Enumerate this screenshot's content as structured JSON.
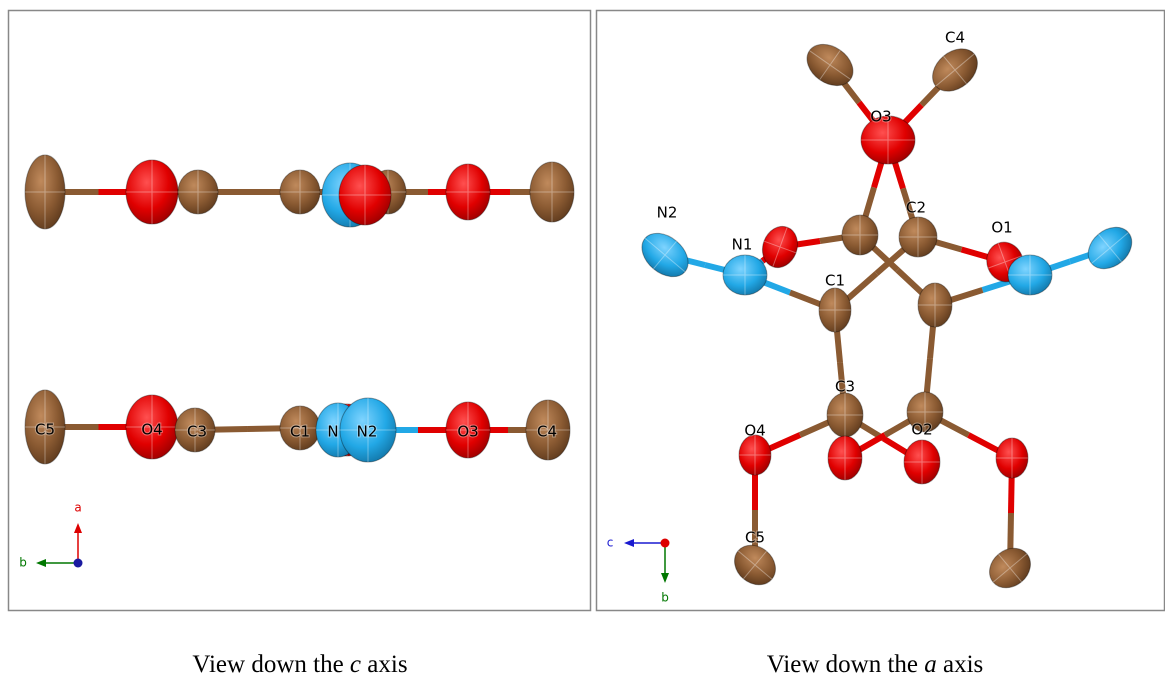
{
  "left_view": {
    "atom_labels": [
      "C5",
      "O4",
      "C3",
      "C1",
      "N",
      "N2",
      "O3",
      "C4"
    ],
    "axes": [
      "a",
      "b"
    ]
  },
  "right_view": {
    "atom_labels": [
      "C4",
      "O3",
      "N2",
      "N1",
      "C2",
      "O1",
      "C1",
      "C3",
      "O4",
      "O2",
      "C5"
    ],
    "axes": [
      "c",
      "b"
    ]
  },
  "captions": [
    {
      "before": "View down the ",
      "axis": "c",
      "after": " axis"
    },
    {
      "before": "View down the ",
      "axis": "a",
      "after": " axis"
    }
  ]
}
